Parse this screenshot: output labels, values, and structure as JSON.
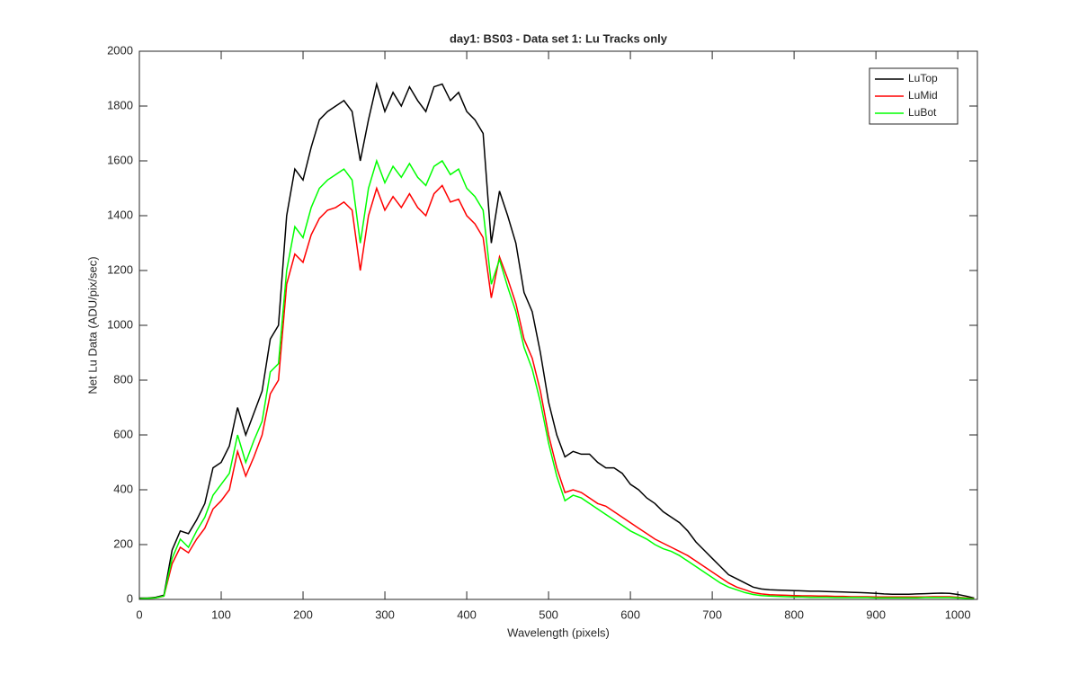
{
  "chart_data": {
    "type": "line",
    "title": "day1: BS03 - Data set 1: Lu Tracks only",
    "xlabel": "Wavelength (pixels)",
    "ylabel": "Net Lu Data (ADU/pix/sec)",
    "x": [
      0,
      10,
      20,
      30,
      40,
      50,
      60,
      70,
      80,
      90,
      100,
      110,
      120,
      130,
      140,
      150,
      160,
      170,
      180,
      190,
      200,
      210,
      220,
      230,
      240,
      250,
      260,
      270,
      280,
      290,
      300,
      310,
      320,
      330,
      340,
      350,
      360,
      370,
      380,
      390,
      400,
      410,
      420,
      430,
      440,
      450,
      460,
      470,
      480,
      490,
      500,
      510,
      520,
      530,
      540,
      550,
      560,
      570,
      580,
      590,
      600,
      610,
      620,
      630,
      640,
      650,
      660,
      670,
      680,
      690,
      700,
      710,
      720,
      730,
      740,
      750,
      760,
      770,
      780,
      790,
      800,
      810,
      820,
      830,
      840,
      850,
      860,
      870,
      880,
      890,
      900,
      910,
      920,
      930,
      940,
      950,
      960,
      970,
      980,
      990,
      1000,
      1010,
      1020
    ],
    "series": [
      {
        "name": "LuTop",
        "color": "#000000",
        "values": [
          5,
          5,
          8,
          15,
          180,
          250,
          240,
          290,
          350,
          480,
          500,
          560,
          700,
          600,
          680,
          760,
          950,
          1000,
          1400,
          1570,
          1530,
          1650,
          1750,
          1780,
          1800,
          1820,
          1780,
          1600,
          1750,
          1880,
          1780,
          1850,
          1800,
          1870,
          1820,
          1780,
          1870,
          1880,
          1820,
          1850,
          1780,
          1750,
          1700,
          1300,
          1490,
          1400,
          1300,
          1120,
          1050,
          900,
          720,
          600,
          520,
          540,
          530,
          530,
          500,
          480,
          480,
          460,
          420,
          400,
          370,
          350,
          320,
          300,
          280,
          250,
          210,
          180,
          150,
          120,
          90,
          75,
          60,
          45,
          38,
          35,
          34,
          33,
          32,
          31,
          30,
          30,
          29,
          28,
          27,
          26,
          25,
          24,
          22,
          20,
          19,
          19,
          19,
          20,
          21,
          22,
          23,
          22,
          18,
          12,
          5
        ]
      },
      {
        "name": "LuMid",
        "color": "#ff0000",
        "values": [
          3,
          4,
          6,
          12,
          130,
          190,
          170,
          220,
          260,
          330,
          360,
          400,
          540,
          450,
          520,
          600,
          750,
          800,
          1150,
          1260,
          1230,
          1330,
          1390,
          1420,
          1430,
          1450,
          1420,
          1200,
          1400,
          1500,
          1420,
          1470,
          1430,
          1480,
          1430,
          1400,
          1480,
          1510,
          1450,
          1460,
          1400,
          1370,
          1320,
          1100,
          1250,
          1170,
          1080,
          950,
          880,
          760,
          600,
          480,
          390,
          400,
          390,
          370,
          350,
          340,
          320,
          300,
          280,
          260,
          240,
          220,
          205,
          190,
          175,
          160,
          140,
          120,
          100,
          80,
          60,
          45,
          35,
          25,
          20,
          17,
          16,
          15,
          14,
          13,
          13,
          12,
          12,
          11,
          11,
          10,
          10,
          10,
          9,
          9,
          9,
          9,
          9,
          9,
          9,
          10,
          10,
          10,
          8,
          6,
          3
        ]
      },
      {
        "name": "LuBot",
        "color": "#00ff00",
        "values": [
          3,
          4,
          6,
          12,
          150,
          220,
          190,
          250,
          300,
          380,
          420,
          460,
          600,
          500,
          580,
          650,
          830,
          860,
          1200,
          1360,
          1320,
          1430,
          1500,
          1530,
          1550,
          1570,
          1530,
          1300,
          1500,
          1600,
          1520,
          1580,
          1540,
          1590,
          1540,
          1510,
          1580,
          1600,
          1550,
          1570,
          1500,
          1470,
          1420,
          1150,
          1240,
          1140,
          1050,
          920,
          840,
          720,
          570,
          450,
          360,
          380,
          370,
          350,
          330,
          310,
          290,
          270,
          250,
          235,
          220,
          200,
          185,
          175,
          160,
          140,
          120,
          100,
          80,
          60,
          45,
          35,
          25,
          18,
          14,
          12,
          11,
          10,
          9,
          9,
          8,
          8,
          8,
          7,
          7,
          7,
          7,
          7,
          6,
          6,
          6,
          6,
          6,
          6,
          7,
          7,
          7,
          7,
          6,
          4,
          2
        ]
      }
    ],
    "xlim": [
      0,
      1024
    ],
    "xticks": [
      0,
      100,
      200,
      300,
      400,
      500,
      600,
      700,
      800,
      900,
      1000
    ],
    "ylim": [
      0,
      2000
    ],
    "yticks": [
      0,
      200,
      400,
      600,
      800,
      1000,
      1200,
      1400,
      1600,
      1800,
      2000
    ],
    "legend": "northeast"
  }
}
